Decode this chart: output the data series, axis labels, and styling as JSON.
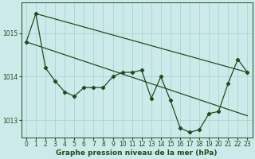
{
  "title": "Graphe pression niveau de la mer (hPa)",
  "bg_color": "#cceaea",
  "grid_color": "#aad4d4",
  "line_color": "#1e4d1e",
  "marker_color": "#1e4d1e",
  "xlim": [
    -0.5,
    23.5
  ],
  "ylim": [
    1012.6,
    1015.7
  ],
  "yticks": [
    1013,
    1014,
    1015
  ],
  "xticks": [
    0,
    1,
    2,
    3,
    4,
    5,
    6,
    7,
    8,
    9,
    10,
    11,
    12,
    13,
    14,
    15,
    16,
    17,
    18,
    19,
    20,
    21,
    22,
    23
  ],
  "series1_x": [
    0,
    1,
    2,
    3,
    4,
    5,
    6,
    7,
    8,
    9,
    10,
    11,
    12,
    13,
    14,
    15,
    16,
    17,
    18,
    19,
    20,
    21,
    22,
    23
  ],
  "series1_y": [
    1014.8,
    1015.45,
    1014.2,
    1013.9,
    1013.65,
    1013.55,
    1013.75,
    1013.75,
    1013.75,
    1014.0,
    1014.1,
    1014.1,
    1014.15,
    1013.5,
    1014.0,
    1013.45,
    1012.82,
    1012.72,
    1012.78,
    1013.15,
    1013.2,
    1013.85,
    1014.4,
    1014.1
  ],
  "series2_x": [
    0,
    23
  ],
  "series2_y": [
    1014.8,
    1013.1
  ],
  "series3_x": [
    1,
    23
  ],
  "series3_y": [
    1015.45,
    1014.1
  ],
  "tick_fontsize": 5.5,
  "xlabel_fontsize": 6.5
}
